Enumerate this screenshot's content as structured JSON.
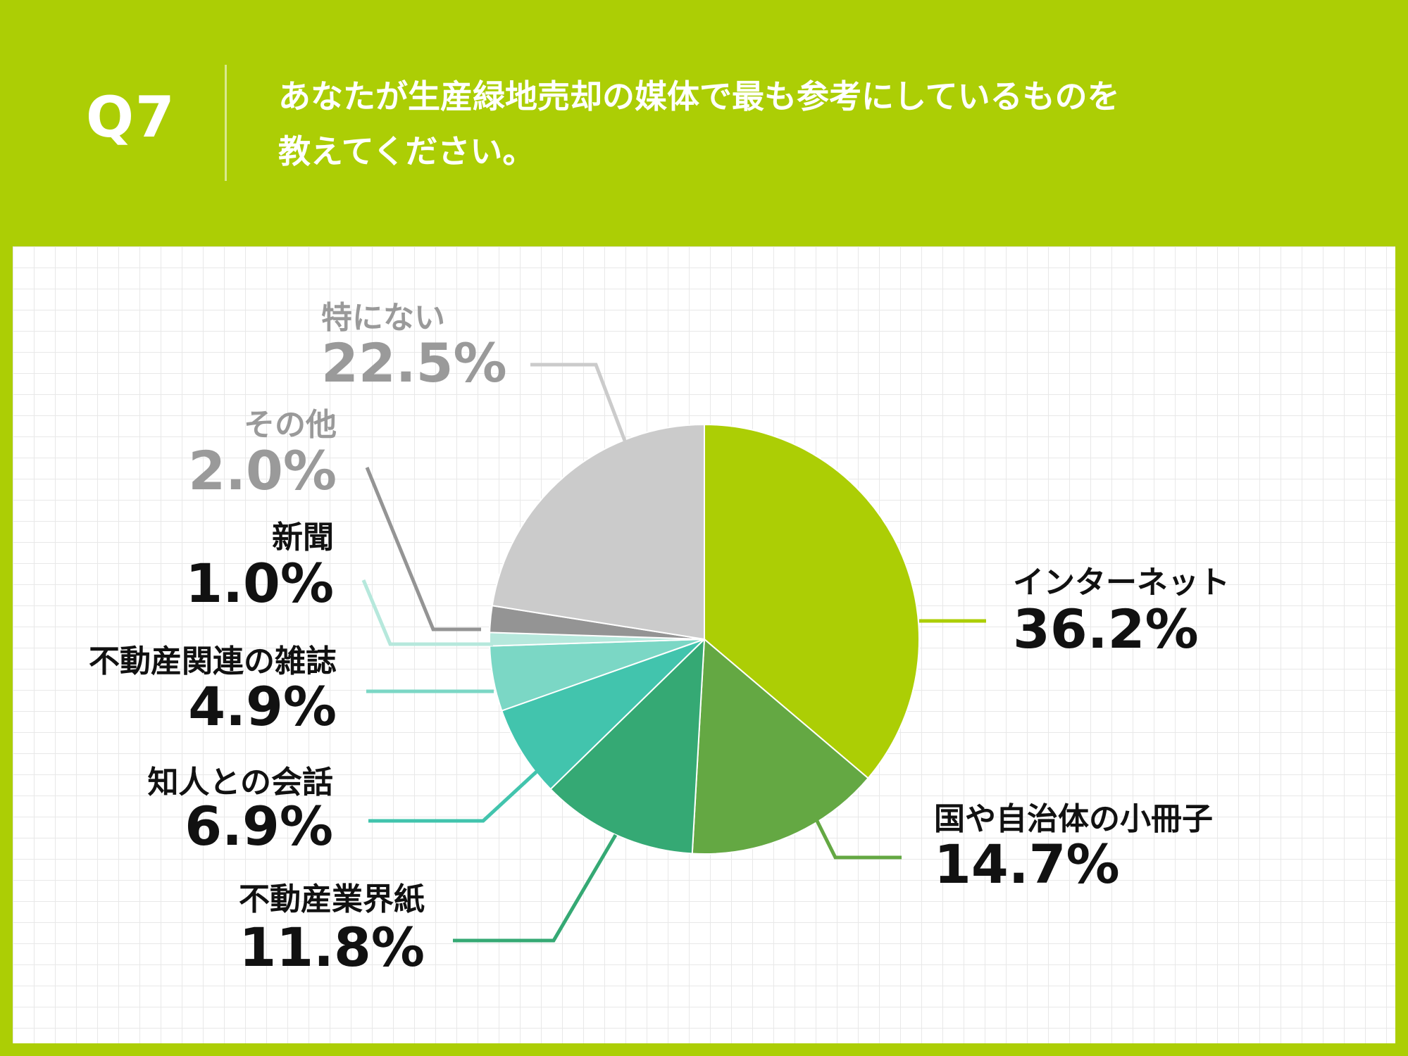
{
  "header": {
    "q_number": "Q7",
    "question_line1": "あなたが生産緑地売却の媒体で最も参考にしているものを",
    "question_line2": "教えてください。"
  },
  "chart_data": {
    "type": "pie",
    "unit": "%",
    "slices": [
      {
        "label": "インターネット",
        "value": 36.2,
        "value_label": "36.2%",
        "color": "#acce05",
        "label_color": "#111111"
      },
      {
        "label": "国や自治体の小冊子",
        "value": 14.7,
        "value_label": "14.7%",
        "color": "#64a843",
        "label_color": "#111111"
      },
      {
        "label": "不動産業界紙",
        "value": 11.8,
        "value_label": "11.8%",
        "color": "#35a974",
        "label_color": "#111111"
      },
      {
        "label": "知人との会話",
        "value": 6.9,
        "value_label": "6.9%",
        "color": "#42c4ad",
        "label_color": "#111111"
      },
      {
        "label": "不動産関連の雑誌",
        "value": 4.9,
        "value_label": "4.9%",
        "color": "#7bd7c5",
        "label_color": "#111111"
      },
      {
        "label": "新聞",
        "value": 1.0,
        "value_label": "1.0%",
        "color": "#b6e8dc",
        "label_color": "#111111"
      },
      {
        "label": "その他",
        "value": 2.0,
        "value_label": "2.0%",
        "color": "#949494",
        "label_color": "#9a9a9a"
      },
      {
        "label": "特にない",
        "value": 22.5,
        "value_label": "22.5%",
        "color": "#cbcbcb",
        "label_color": "#9a9a9a"
      }
    ]
  }
}
